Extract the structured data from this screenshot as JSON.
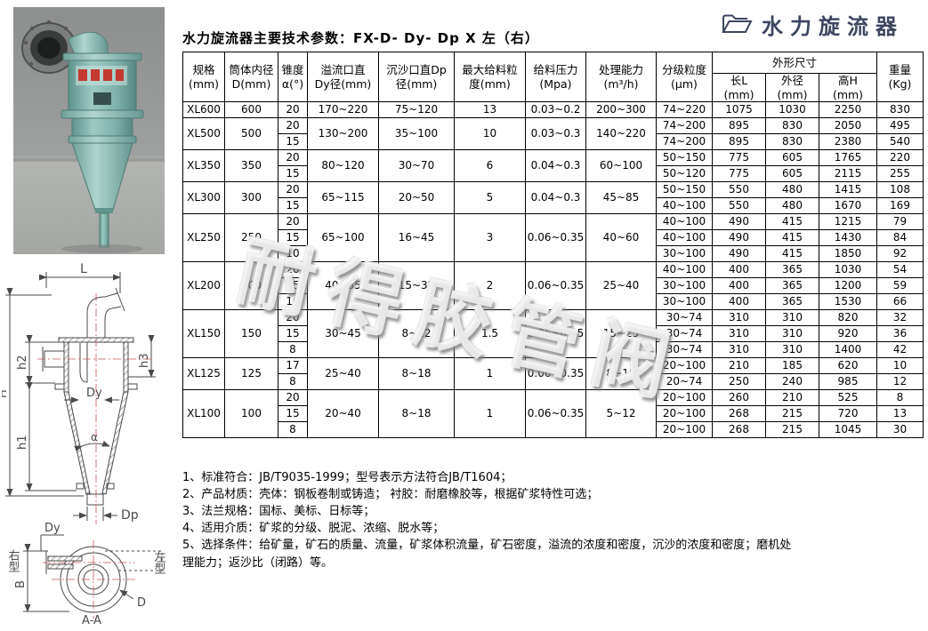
{
  "logo": {
    "text": "水力旋流器",
    "icon": "folder-icon",
    "color": "#3d4660"
  },
  "title": "水力旋流器主要技术参数：FX-D- Dy- Dp X 左（右）",
  "watermark": "耐得胶管阀",
  "colors": {
    "logo": "#3d4660",
    "table_border": "#000000",
    "watermark_shadow": "#9a9a9a",
    "photo_teal": "#86b8b0",
    "drawing_centerline": "#cc5555"
  },
  "table": {
    "headers": {
      "spec": "规格\n(mm)",
      "body_diameter": "筒体内径\nD(mm)",
      "cone_angle": "锥度\nα(°)",
      "overflow_dia": "溢流口直\nDy径(mm)",
      "spigot_dia": "沉沙口直Dp\n径(mm)",
      "max_feed_size": "最大给料粒\n度(mm)",
      "feed_pressure": "给料压力\n(Mpa)",
      "capacity": "处理能力\n(m³/h)",
      "grading_size": "分级粒度\n(μm)",
      "dims_group": "外形尺寸",
      "length_l": "长L\n(mm)",
      "outer_dia": "外径\n(mm)",
      "height_h": "高H\n(mm)",
      "weight": "重量\n(Kg)"
    },
    "groups": [
      {
        "model": "XL600",
        "dia": "600",
        "overflow": "170~220",
        "spigot": "75~120",
        "feed": "13",
        "pressure": "0.03~0.2",
        "capacity": "200~300",
        "rows": [
          {
            "angle": "20",
            "grading": "74~220",
            "l": "1075",
            "od": "1030",
            "h": "2250",
            "w": "830"
          }
        ]
      },
      {
        "model": "XL500",
        "dia": "500",
        "overflow": "130~200",
        "spigot": "35~100",
        "feed": "10",
        "pressure": "0.03~0.3",
        "capacity": "140~220",
        "rows": [
          {
            "angle": "20",
            "grading": "74~200",
            "l": "895",
            "od": "830",
            "h": "2050",
            "w": "495"
          },
          {
            "angle": "15",
            "grading": "74~200",
            "l": "895",
            "od": "830",
            "h": "2380",
            "w": "540"
          }
        ]
      },
      {
        "model": "XL350",
        "dia": "350",
        "overflow": "80~120",
        "spigot": "30~70",
        "feed": "6",
        "pressure": "0.04~0.3",
        "capacity": "60~100",
        "rows": [
          {
            "angle": "20",
            "grading": "50~150",
            "l": "775",
            "od": "605",
            "h": "1765",
            "w": "220"
          },
          {
            "angle": "15",
            "grading": "50~120",
            "l": "775",
            "od": "605",
            "h": "2115",
            "w": "255"
          }
        ]
      },
      {
        "model": "XL300",
        "dia": "300",
        "overflow": "65~115",
        "spigot": "20~50",
        "feed": "5",
        "pressure": "0.04~0.3",
        "capacity": "45~85",
        "rows": [
          {
            "angle": "20",
            "grading": "50~150",
            "l": "550",
            "od": "480",
            "h": "1415",
            "w": "108"
          },
          {
            "angle": "15",
            "grading": "40~100",
            "l": "550",
            "od": "480",
            "h": "1670",
            "w": "169"
          }
        ]
      },
      {
        "model": "XL250",
        "dia": "250",
        "overflow": "65~100",
        "spigot": "16~45",
        "feed": "3",
        "pressure": "0.06~0.35",
        "capacity": "40~60",
        "rows": [
          {
            "angle": "20",
            "grading": "40~100",
            "l": "490",
            "od": "415",
            "h": "1215",
            "w": "79"
          },
          {
            "angle": "15",
            "grading": "40~100",
            "l": "490",
            "od": "415",
            "h": "1430",
            "w": "84"
          },
          {
            "angle": "10",
            "grading": "30~100",
            "l": "490",
            "od": "415",
            "h": "1850",
            "w": "92"
          }
        ]
      },
      {
        "model": "XL200",
        "dia": "200",
        "overflow": "40~65",
        "spigot": "15~32",
        "feed": "2",
        "pressure": "0.06~0.35",
        "capacity": "25~40",
        "rows": [
          {
            "angle": "20",
            "grading": "40~100",
            "l": "400",
            "od": "365",
            "h": "1030",
            "w": "54"
          },
          {
            "angle": "15",
            "grading": "30~100",
            "l": "400",
            "od": "365",
            "h": "1200",
            "w": "59"
          },
          {
            "angle": "10",
            "grading": "30~100",
            "l": "400",
            "od": "365",
            "h": "1530",
            "w": "66"
          }
        ]
      },
      {
        "model": "XL150",
        "dia": "150",
        "overflow": "30~45",
        "spigot": "8~22",
        "feed": "1.5",
        "pressure": "0.06~0.35",
        "capacity": "15~25",
        "rows": [
          {
            "angle": "20",
            "grading": "30~74",
            "l": "310",
            "od": "310",
            "h": "820",
            "w": "32"
          },
          {
            "angle": "15",
            "grading": "30~74",
            "l": "310",
            "od": "310",
            "h": "920",
            "w": "36"
          },
          {
            "angle": "8",
            "grading": "30~74",
            "l": "310",
            "od": "310",
            "h": "1400",
            "w": "42"
          }
        ]
      },
      {
        "model": "XL125",
        "dia": "125",
        "overflow": "25~40",
        "spigot": "8~18",
        "feed": "1",
        "pressure": "0.06~0.35",
        "capacity": "8~15",
        "rows": [
          {
            "angle": "17",
            "grading": "20~100",
            "l": "210",
            "od": "185",
            "h": "620",
            "w": "10"
          },
          {
            "angle": "8",
            "grading": "20~74",
            "l": "250",
            "od": "240",
            "h": "985",
            "w": "12"
          }
        ]
      },
      {
        "model": "XL100",
        "dia": "100",
        "overflow": "20~40",
        "spigot": "8~18",
        "feed": "1",
        "pressure": "0.06~0.35",
        "capacity": "5~12",
        "rows": [
          {
            "angle": "20",
            "grading": "20~100",
            "l": "260",
            "od": "210",
            "h": "525",
            "w": "8"
          },
          {
            "angle": "15",
            "grading": "20~100",
            "l": "268",
            "od": "215",
            "h": "720",
            "w": "13"
          },
          {
            "angle": "8",
            "grading": "20~100",
            "l": "268",
            "od": "215",
            "h": "1045",
            "w": "30"
          }
        ]
      }
    ]
  },
  "notes": [
    "1、标准符合：JB/T9035-1999；型号表示方法符合JB/T1604；",
    "2、产品材质：壳体：钢板卷制或铸造； 衬胶：耐磨橡胶等，根据矿浆特性可选；",
    "3、法兰规格：国标、美标、日标等；",
    "4、适用介质：矿浆的分级、脱泥、浓缩、脱水等；",
    "5、选择条件：给矿量，矿石的质量、流量，矿浆体积流量，矿石密度，溢流的浓度和密度，沉沙的浓度和密度；磨机处理能力；返沙比（闭路）等。"
  ],
  "drawing": {
    "labels": {
      "l": "L",
      "h": "H",
      "h2": "h2",
      "h3": "h3",
      "dy": "Dy",
      "h1": "h1",
      "alpha": "α",
      "dp": "Dp",
      "dy2": "Dy",
      "right_type": "右型",
      "left_type": "左型",
      "b": "B",
      "d": "D",
      "section": "A-A"
    }
  }
}
